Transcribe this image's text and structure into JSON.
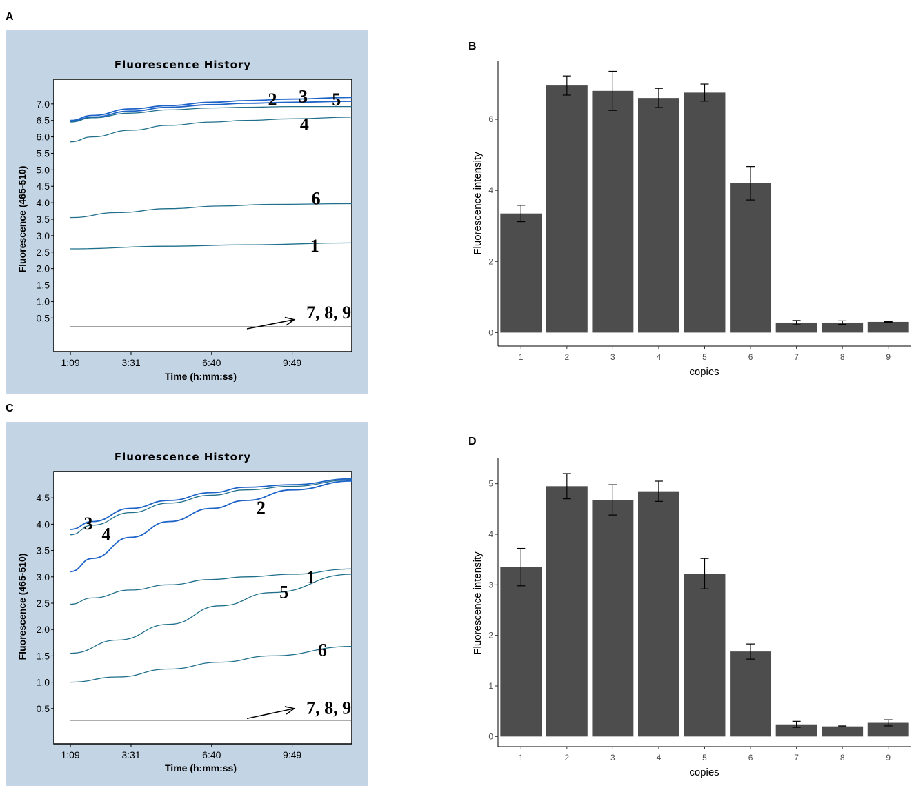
{
  "panels": {
    "a": {
      "letter": "A"
    },
    "b": {
      "letter": "B"
    },
    "c": {
      "letter": "C"
    },
    "d": {
      "letter": "D"
    }
  },
  "chart_data": [
    {
      "id": "A",
      "type": "line",
      "title": "Fluorescence History",
      "xlabel": "Time (h:mm:ss)",
      "ylabel": "Fluorescence (465-510)",
      "x_tick_labels": [
        "1:09",
        "3:31",
        "6:40",
        "9:49"
      ],
      "x_ticks": [
        1.15,
        3.52,
        6.67,
        9.82
      ],
      "xlim": [
        0.5,
        12.15
      ],
      "ylim": [
        -0.52,
        7.75
      ],
      "y_ticks": [
        "7.0",
        "6.5",
        "6.0",
        "5.5",
        "5.0",
        "4.5",
        "4.0",
        "3.5",
        "3.0",
        "2.5",
        "2.0",
        "1.5",
        "1.0",
        "0.5"
      ],
      "series": [
        {
          "name": "1",
          "x": [
            1.15,
            5,
            8,
            12.15
          ],
          "y": [
            2.6,
            2.68,
            2.72,
            2.78
          ]
        },
        {
          "name": "2",
          "x": [
            1.15,
            2,
            3.5,
            5,
            6.67,
            8,
            9.82,
            12.15
          ],
          "y": [
            6.5,
            6.65,
            6.85,
            6.95,
            7.05,
            7.1,
            7.15,
            7.2
          ]
        },
        {
          "name": "3",
          "x": [
            1.15,
            2,
            3.5,
            5,
            6.67,
            8,
            9.82,
            12.15
          ],
          "y": [
            6.47,
            6.6,
            6.78,
            6.9,
            6.98,
            7.02,
            7.05,
            7.08
          ]
        },
        {
          "name": "4",
          "x": [
            1.15,
            2,
            3.5,
            5,
            6.67,
            8,
            9.82,
            12.15
          ],
          "y": [
            5.85,
            6.0,
            6.2,
            6.35,
            6.45,
            6.5,
            6.55,
            6.6
          ]
        },
        {
          "name": "5",
          "x": [
            1.15,
            2,
            3.5,
            5,
            6.67,
            8,
            9.82,
            12.15
          ],
          "y": [
            6.45,
            6.58,
            6.72,
            6.82,
            6.88,
            6.9,
            6.92,
            6.92
          ]
        },
        {
          "name": "6",
          "x": [
            1.15,
            3,
            5,
            7,
            9,
            12.15
          ],
          "y": [
            3.55,
            3.7,
            3.82,
            3.9,
            3.95,
            3.97
          ]
        },
        {
          "name": "7",
          "x": [
            1.15,
            12.15
          ],
          "y": [
            0.23,
            0.23
          ]
        },
        {
          "name": "8",
          "x": [
            1.15,
            12.15
          ],
          "y": [
            0.23,
            0.23
          ]
        },
        {
          "name": "9",
          "x": [
            1.15,
            12.15
          ],
          "y": [
            0.23,
            0.23
          ]
        }
      ],
      "curve_labels": [
        {
          "text": "2",
          "x": 9.05,
          "y": 6.95
        },
        {
          "text": "3",
          "x": 10.25,
          "y": 7.05
        },
        {
          "text": "5",
          "x": 11.55,
          "y": 6.95
        },
        {
          "text": "4",
          "x": 10.3,
          "y": 6.2
        },
        {
          "text": "6",
          "x": 10.75,
          "y": 3.95
        },
        {
          "text": "1",
          "x": 10.7,
          "y": 2.52
        },
        {
          "text": "7, 8, 9",
          "x": 11.25,
          "y": 0.48
        }
      ],
      "arrow": {
        "from": [
          8.05,
          0.17
        ],
        "to": [
          9.9,
          0.45
        ]
      }
    },
    {
      "id": "B",
      "type": "bar",
      "categories": [
        "1",
        "2",
        "3",
        "4",
        "5",
        "6",
        "7",
        "8",
        "9"
      ],
      "values": [
        3.35,
        6.95,
        6.8,
        6.6,
        6.75,
        4.2,
        0.28,
        0.28,
        0.3
      ],
      "errors": [
        0.23,
        0.27,
        0.55,
        0.27,
        0.24,
        0.47,
        0.06,
        0.05,
        0.01
      ],
      "xlabel": "copies",
      "ylabel": "Fluorescence intensity",
      "ylim": [
        -0.38,
        7.65
      ],
      "y_ticks": [
        0,
        2,
        4,
        6
      ]
    },
    {
      "id": "C",
      "type": "line",
      "title": "Fluorescence History",
      "xlabel": "Time (h:mm:ss)",
      "ylabel": "Fluorescence (465-510)",
      "x_tick_labels": [
        "1:09",
        "3:31",
        "6:40",
        "9:49"
      ],
      "x_ticks": [
        1.15,
        3.52,
        6.67,
        9.82
      ],
      "xlim": [
        0.5,
        12.15
      ],
      "ylim": [
        -0.17,
        5.0
      ],
      "y_ticks": [
        "4.5",
        "4.0",
        "3.5",
        "3.0",
        "2.5",
        "2.0",
        "1.5",
        "1.0",
        "0.5"
      ],
      "series": [
        {
          "name": "1",
          "x": [
            1.15,
            2,
            3.5,
            5,
            6.67,
            8,
            9.82,
            12.15
          ],
          "y": [
            2.48,
            2.6,
            2.75,
            2.85,
            2.95,
            3.0,
            3.05,
            3.15
          ]
        },
        {
          "name": "2",
          "x": [
            1.15,
            2,
            3.5,
            5,
            6.67,
            8,
            9.82,
            12.15
          ],
          "y": [
            3.1,
            3.35,
            3.75,
            4.05,
            4.3,
            4.45,
            4.65,
            4.82
          ]
        },
        {
          "name": "3",
          "x": [
            1.15,
            2,
            3.5,
            5,
            6.67,
            8,
            9.82,
            12.15
          ],
          "y": [
            3.9,
            4.05,
            4.3,
            4.45,
            4.6,
            4.7,
            4.75,
            4.86
          ]
        },
        {
          "name": "4",
          "x": [
            1.15,
            2,
            3.5,
            5,
            6.67,
            8,
            9.82,
            12.15
          ],
          "y": [
            3.8,
            3.98,
            4.22,
            4.4,
            4.55,
            4.65,
            4.72,
            4.84
          ]
        },
        {
          "name": "5",
          "x": [
            1.15,
            3,
            5,
            7,
            9,
            12.15
          ],
          "y": [
            1.55,
            1.8,
            2.1,
            2.45,
            2.7,
            3.05
          ]
        },
        {
          "name": "6",
          "x": [
            1.15,
            3,
            5,
            7,
            9,
            12.15
          ],
          "y": [
            1.0,
            1.1,
            1.25,
            1.38,
            1.5,
            1.68
          ]
        },
        {
          "name": "7",
          "x": [
            1.15,
            12.15
          ],
          "y": [
            0.28,
            0.28
          ]
        },
        {
          "name": "8",
          "x": [
            1.15,
            12.15
          ],
          "y": [
            0.28,
            0.28
          ]
        },
        {
          "name": "9",
          "x": [
            1.15,
            12.15
          ],
          "y": [
            0.28,
            0.28
          ]
        }
      ],
      "curve_labels": [
        {
          "text": "3",
          "x": 1.85,
          "y": 3.9
        },
        {
          "text": "4",
          "x": 2.55,
          "y": 3.7
        },
        {
          "text": "2",
          "x": 8.6,
          "y": 4.2
        },
        {
          "text": "1",
          "x": 10.55,
          "y": 2.88
        },
        {
          "text": "5",
          "x": 9.5,
          "y": 2.6
        },
        {
          "text": "6",
          "x": 11.0,
          "y": 1.5
        },
        {
          "text": "7, 8, 9",
          "x": 11.25,
          "y": 0.4
        }
      ],
      "arrow": {
        "from": [
          8.05,
          0.31
        ],
        "to": [
          9.9,
          0.5
        ]
      }
    },
    {
      "id": "D",
      "type": "bar",
      "categories": [
        "1",
        "2",
        "3",
        "4",
        "5",
        "6",
        "7",
        "8",
        "9"
      ],
      "values": [
        3.35,
        4.95,
        4.68,
        4.85,
        3.22,
        1.68,
        0.24,
        0.2,
        0.27
      ],
      "errors": [
        0.37,
        0.25,
        0.3,
        0.2,
        0.3,
        0.15,
        0.06,
        0.01,
        0.06
      ],
      "xlabel": "copies",
      "ylabel": "Fluorescence intensity",
      "ylim": [
        -0.2,
        5.5
      ],
      "y_ticks": [
        0,
        1,
        2,
        3,
        4,
        5
      ]
    }
  ]
}
